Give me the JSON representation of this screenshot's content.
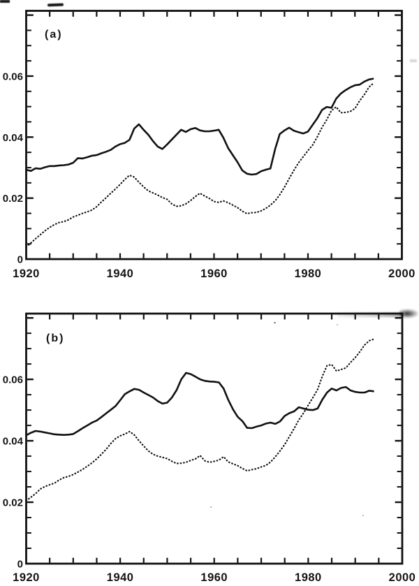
{
  "figure": {
    "description": "Two-panel scanned line chart, annual time series 1920-1995, solid and dotted curves per panel",
    "line_color": "#111111",
    "background_color": "#ffffff"
  },
  "chart_data": [
    {
      "type": "line",
      "panel_label": "(a)",
      "title": "",
      "xlabel": "",
      "ylabel": "",
      "xlim": [
        1920,
        2000
      ],
      "ylim": [
        0,
        0.0814
      ],
      "x_tick_step": 5,
      "x_tick_labels": [
        "1920",
        "1940",
        "1960",
        "1980",
        "2000"
      ],
      "y_minor_tick_step": 0.005,
      "y_major_tick_step": 0.02,
      "y_tick_labels": [
        {
          "value": 0,
          "label": "0"
        },
        {
          "value": 0.02,
          "label": "0.02"
        },
        {
          "value": 0.04,
          "label": "0.04"
        },
        {
          "value": 0.06,
          "label": "0.06"
        }
      ],
      "x_start": 1920,
      "x_step": 1,
      "grid": false,
      "legend": "none",
      "series": [
        {
          "name": "solid-line",
          "style": "solid",
          "values": [
            0.0293,
            0.0289,
            0.0298,
            0.0296,
            0.0301,
            0.0305,
            0.0305,
            0.0307,
            0.0308,
            0.031,
            0.0316,
            0.0331,
            0.033,
            0.0334,
            0.0339,
            0.0341,
            0.0347,
            0.0352,
            0.0358,
            0.0369,
            0.0377,
            0.0381,
            0.0391,
            0.0428,
            0.0442,
            0.0424,
            0.0408,
            0.0387,
            0.0369,
            0.0361,
            0.0376,
            0.0392,
            0.0408,
            0.0424,
            0.0417,
            0.0426,
            0.043,
            0.0422,
            0.0419,
            0.0419,
            0.0421,
            0.0424,
            0.0398,
            0.0364,
            0.0341,
            0.0318,
            0.0291,
            0.028,
            0.0277,
            0.0279,
            0.0288,
            0.0293,
            0.0297,
            0.036,
            0.041,
            0.0422,
            0.0431,
            0.0421,
            0.0416,
            0.0412,
            0.0418,
            0.044,
            0.0462,
            0.0489,
            0.0499,
            0.0496,
            0.0526,
            0.0543,
            0.0554,
            0.0563,
            0.057,
            0.0572,
            0.0582,
            0.0589,
            0.0592
          ]
        },
        {
          "name": "dotted-line",
          "style": "dotted",
          "values": [
            0.004,
            0.0053,
            0.0067,
            0.008,
            0.0093,
            0.0104,
            0.0113,
            0.012,
            0.0123,
            0.0129,
            0.0138,
            0.0144,
            0.015,
            0.0155,
            0.0161,
            0.0172,
            0.0187,
            0.0201,
            0.0216,
            0.023,
            0.0245,
            0.0261,
            0.0275,
            0.0269,
            0.0252,
            0.0237,
            0.0224,
            0.0217,
            0.021,
            0.0202,
            0.0196,
            0.0181,
            0.0173,
            0.0175,
            0.0181,
            0.0192,
            0.0205,
            0.0216,
            0.0207,
            0.0199,
            0.0189,
            0.0186,
            0.0191,
            0.0185,
            0.0177,
            0.0169,
            0.0157,
            0.0149,
            0.0152,
            0.0153,
            0.0158,
            0.0166,
            0.0177,
            0.0191,
            0.0211,
            0.0236,
            0.0264,
            0.0291,
            0.0316,
            0.0336,
            0.0356,
            0.0374,
            0.0401,
            0.0432,
            0.0457,
            0.0487,
            0.0499,
            0.048,
            0.0481,
            0.0484,
            0.0494,
            0.0519,
            0.0539,
            0.0564,
            0.0577
          ]
        }
      ]
    },
    {
      "type": "line",
      "panel_label": "(b)",
      "title": "",
      "xlabel": "",
      "ylabel": "",
      "xlim": [
        1920,
        2000
      ],
      "ylim": [
        0,
        0.0814
      ],
      "x_tick_step": 5,
      "x_tick_labels": [
        "1920",
        "1940",
        "1960",
        "1980",
        "2000"
      ],
      "y_minor_tick_step": 0.005,
      "y_major_tick_step": 0.02,
      "y_tick_labels": [
        {
          "value": 0,
          "label": "0"
        },
        {
          "value": 0.02,
          "label": "0.02"
        },
        {
          "value": 0.04,
          "label": "0.04"
        },
        {
          "value": 0.06,
          "label": "0.06"
        }
      ],
      "x_start": 1920,
      "x_step": 1,
      "grid": false,
      "legend": "none",
      "series": [
        {
          "name": "solid-line",
          "style": "solid",
          "values": [
            0.0418,
            0.0426,
            0.0432,
            0.043,
            0.0427,
            0.0424,
            0.0421,
            0.042,
            0.0419,
            0.042,
            0.0422,
            0.0431,
            0.0441,
            0.045,
            0.0459,
            0.0466,
            0.0477,
            0.0489,
            0.0501,
            0.0513,
            0.0532,
            0.0552,
            0.0561,
            0.0569,
            0.0566,
            0.0557,
            0.0549,
            0.0541,
            0.0529,
            0.0521,
            0.0524,
            0.0541,
            0.0565,
            0.06,
            0.0621,
            0.0617,
            0.0609,
            0.06,
            0.0595,
            0.0593,
            0.0592,
            0.059,
            0.057,
            0.0533,
            0.0502,
            0.0478,
            0.0464,
            0.0442,
            0.0441,
            0.0446,
            0.045,
            0.0456,
            0.0459,
            0.0455,
            0.0463,
            0.0481,
            0.049,
            0.0496,
            0.0509,
            0.0505,
            0.0501,
            0.05,
            0.0505,
            0.0534,
            0.0557,
            0.057,
            0.0564,
            0.0572,
            0.0575,
            0.0564,
            0.0559,
            0.0557,
            0.0557,
            0.0563,
            0.0561
          ]
        },
        {
          "name": "dotted-line",
          "style": "dotted",
          "values": [
            0.0205,
            0.0216,
            0.0228,
            0.0243,
            0.0251,
            0.0257,
            0.0262,
            0.0272,
            0.028,
            0.0284,
            0.029,
            0.0298,
            0.0307,
            0.0317,
            0.0328,
            0.0341,
            0.0356,
            0.0372,
            0.0391,
            0.0407,
            0.0416,
            0.0422,
            0.043,
            0.0419,
            0.04,
            0.0383,
            0.0367,
            0.0356,
            0.035,
            0.0346,
            0.0342,
            0.0333,
            0.0326,
            0.0327,
            0.033,
            0.0336,
            0.0341,
            0.0352,
            0.0335,
            0.033,
            0.0333,
            0.0337,
            0.0348,
            0.0331,
            0.0325,
            0.0319,
            0.031,
            0.0302,
            0.0306,
            0.0309,
            0.0315,
            0.032,
            0.0331,
            0.0348,
            0.0367,
            0.0388,
            0.0414,
            0.044,
            0.0468,
            0.049,
            0.0516,
            0.0541,
            0.0567,
            0.061,
            0.0645,
            0.0648,
            0.0627,
            0.0632,
            0.0637,
            0.0655,
            0.0671,
            0.069,
            0.0712,
            0.0726,
            0.0731
          ]
        }
      ]
    }
  ]
}
